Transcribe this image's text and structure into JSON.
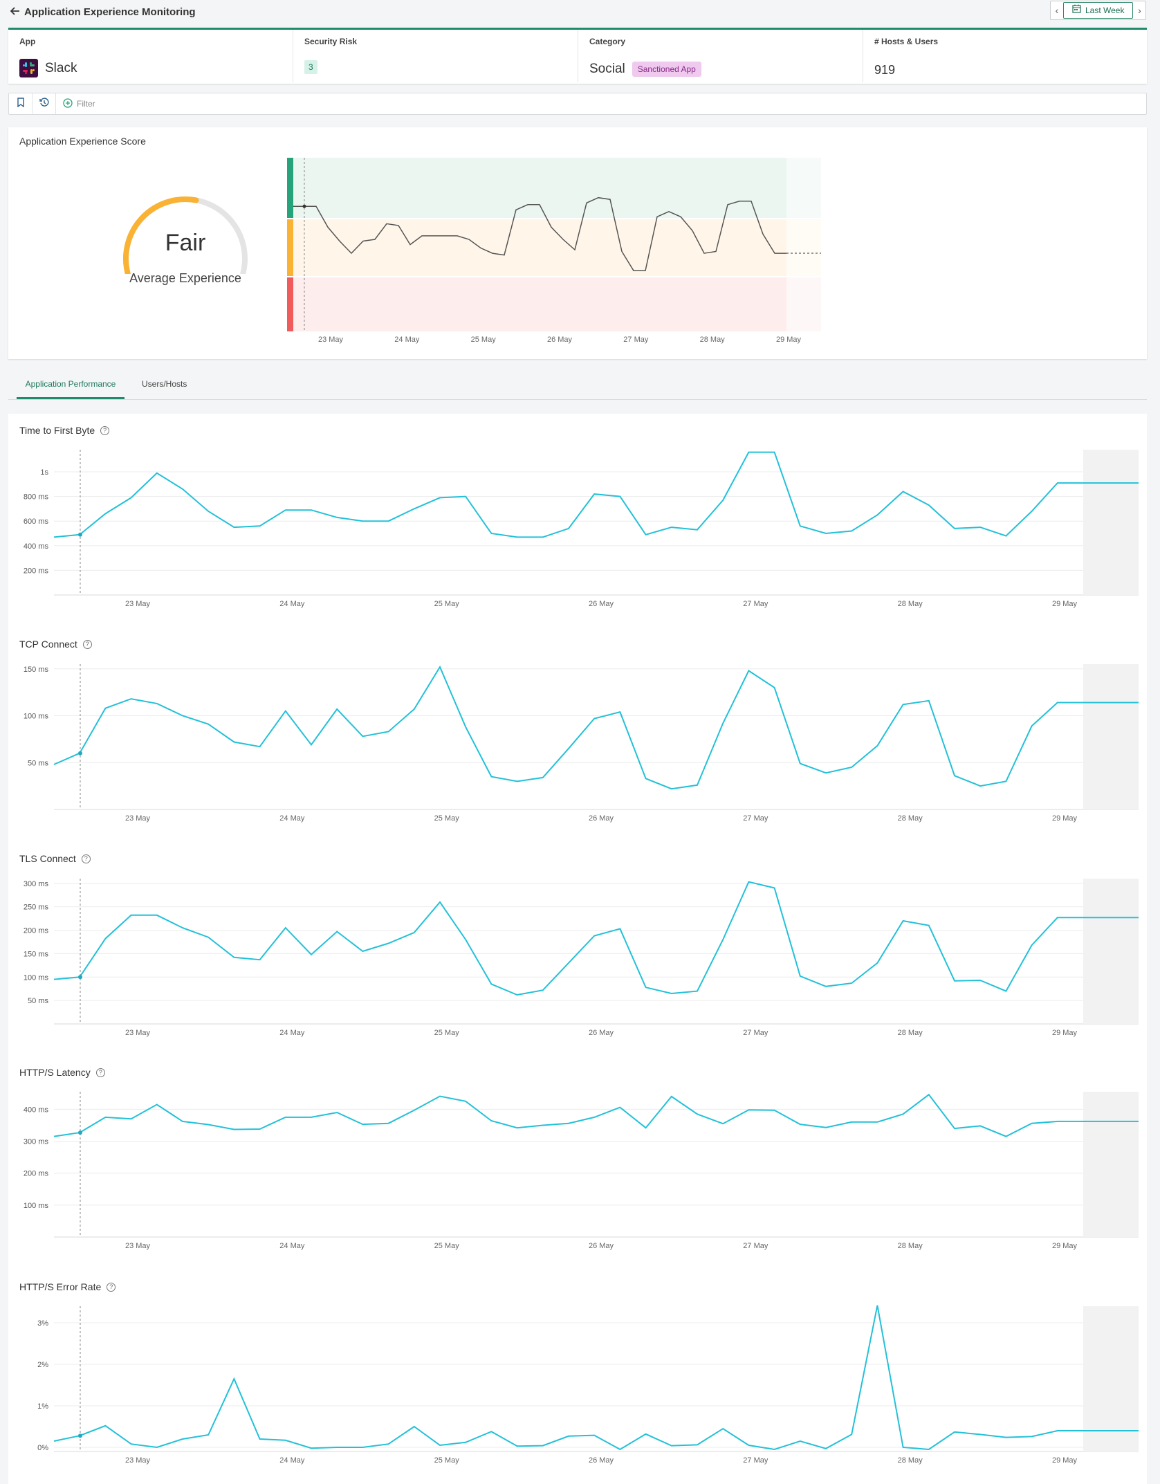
{
  "header": {
    "title": "Application Experience Monitoring",
    "time_range": "Last Week"
  },
  "icons": {
    "back": "back-arrow-icon",
    "calendar": "calendar-icon",
    "bookmark": "bookmark-icon",
    "history": "history-icon",
    "add_filter": "add-circle-icon",
    "help": "help-circle-icon"
  },
  "info": {
    "app_label": "App",
    "app_value": "Slack",
    "risk_label": "Security Risk",
    "risk_value": "3",
    "category_label": "Category",
    "category_value": "Social",
    "category_badge": "Sanctioned App",
    "hosts_label": "# Hosts & Users",
    "hosts_value": "919"
  },
  "filter": {
    "label": "Filter"
  },
  "score": {
    "title": "Application Experience Score",
    "rating": "Fair",
    "subtitle": "Average Experience",
    "gauge_fraction": 0.55,
    "colors": {
      "good": "#26a37a",
      "fair": "#f9b233",
      "poor": "#f05b5b"
    },
    "x_labels": [
      "23 May",
      "24 May",
      "25 May",
      "26 May",
      "27 May",
      "28 May",
      "29 May"
    ],
    "series": [
      0.72,
      0.72,
      0.6,
      0.52,
      0.45,
      0.52,
      0.53,
      0.62,
      0.61,
      0.5,
      0.55,
      0.55,
      0.55,
      0.55,
      0.53,
      0.48,
      0.45,
      0.44,
      0.7,
      0.73,
      0.73,
      0.6,
      0.53,
      0.47,
      0.74,
      0.77,
      0.76,
      0.46,
      0.35,
      0.35,
      0.66,
      0.69,
      0.66,
      0.58,
      0.45,
      0.46,
      0.73,
      0.75,
      0.75,
      0.56,
      0.45,
      0.45
    ]
  },
  "tabs": [
    {
      "label": "Application Performance"
    },
    {
      "label": "Users/Hosts"
    }
  ],
  "chart_data": [
    {
      "type": "line",
      "title": "Time to First Byte",
      "x_labels": [
        "23 May",
        "24 May",
        "25 May",
        "26 May",
        "27 May",
        "28 May",
        "29 May"
      ],
      "y_ticks": [
        {
          "v": 200,
          "label": "200 ms"
        },
        {
          "v": 400,
          "label": "400 ms"
        },
        {
          "v": 600,
          "label": "600 ms"
        },
        {
          "v": 800,
          "label": "800 ms"
        },
        {
          "v": 1000,
          "label": "1s"
        }
      ],
      "ylim": [
        0,
        1180
      ],
      "values": [
        470,
        490,
        660,
        790,
        990,
        860,
        680,
        550,
        560,
        690,
        690,
        630,
        600,
        600,
        700,
        790,
        800,
        500,
        470,
        470,
        540,
        820,
        800,
        490,
        550,
        530,
        770,
        1160,
        1160,
        560,
        500,
        520,
        650,
        840,
        730,
        540,
        550,
        480,
        680,
        910,
        910
      ]
    },
    {
      "type": "line",
      "title": "TCP Connect",
      "x_labels": [
        "23 May",
        "24 May",
        "25 May",
        "26 May",
        "27 May",
        "28 May",
        "29 May"
      ],
      "y_ticks": [
        {
          "v": 50,
          "label": "50 ms"
        },
        {
          "v": 100,
          "label": "100 ms"
        },
        {
          "v": 150,
          "label": "150 ms"
        }
      ],
      "ylim": [
        0,
        155
      ],
      "values": [
        48,
        60,
        108,
        118,
        113,
        100,
        91,
        72,
        67,
        105,
        69,
        107,
        78,
        83,
        107,
        152,
        88,
        35,
        30,
        34,
        65,
        97,
        104,
        33,
        22,
        26,
        92,
        148,
        130,
        49,
        39,
        45,
        68,
        112,
        116,
        36,
        25,
        30,
        89,
        114,
        114
      ]
    },
    {
      "type": "line",
      "title": "TLS Connect",
      "x_labels": [
        "23 May",
        "24 May",
        "25 May",
        "26 May",
        "27 May",
        "28 May",
        "29 May"
      ],
      "y_ticks": [
        {
          "v": 50,
          "label": "50 ms"
        },
        {
          "v": 100,
          "label": "100 ms"
        },
        {
          "v": 150,
          "label": "150 ms"
        },
        {
          "v": 200,
          "label": "200 ms"
        },
        {
          "v": 250,
          "label": "250 ms"
        },
        {
          "v": 300,
          "label": "300 ms"
        }
      ],
      "ylim": [
        0,
        310
      ],
      "values": [
        95,
        100,
        182,
        232,
        232,
        205,
        185,
        142,
        137,
        205,
        148,
        197,
        155,
        172,
        195,
        260,
        180,
        85,
        62,
        72,
        130,
        188,
        203,
        78,
        65,
        70,
        180,
        303,
        290,
        102,
        80,
        87,
        130,
        220,
        210,
        92,
        93,
        70,
        168,
        227,
        227
      ]
    },
    {
      "type": "line",
      "title": "HTTP/S Latency",
      "x_labels": [
        "23 May",
        "24 May",
        "25 May",
        "26 May",
        "27 May",
        "28 May",
        "29 May"
      ],
      "y_ticks": [
        {
          "v": 100,
          "label": "100 ms"
        },
        {
          "v": 200,
          "label": "200 ms"
        },
        {
          "v": 300,
          "label": "300 ms"
        },
        {
          "v": 400,
          "label": "400 ms"
        }
      ],
      "ylim": [
        0,
        455
      ],
      "values": [
        315,
        327,
        375,
        370,
        415,
        362,
        352,
        337,
        338,
        375,
        375,
        390,
        353,
        356,
        397,
        441,
        425,
        364,
        342,
        350,
        356,
        375,
        406,
        342,
        440,
        385,
        355,
        398,
        397,
        353,
        343,
        360,
        360,
        385,
        446,
        340,
        348,
        315,
        356,
        362,
        362
      ]
    },
    {
      "type": "line",
      "title": "HTTP/S Error Rate",
      "x_labels": [
        "23 May",
        "24 May",
        "25 May",
        "26 May",
        "27 May",
        "28 May",
        "29 May"
      ],
      "y_ticks": [
        {
          "v": 0,
          "label": "0%"
        },
        {
          "v": 1,
          "label": "1%"
        },
        {
          "v": 2,
          "label": "2%"
        },
        {
          "v": 3,
          "label": "3%"
        }
      ],
      "ylim": [
        -0.1,
        3.4
      ],
      "values": [
        0.15,
        0.28,
        0.52,
        0.08,
        0.0,
        0.2,
        0.3,
        1.65,
        0.2,
        0.17,
        -0.02,
        0.0,
        0.0,
        0.08,
        0.5,
        0.05,
        0.12,
        0.38,
        0.03,
        0.04,
        0.27,
        0.29,
        -0.05,
        0.32,
        0.04,
        0.06,
        0.45,
        0.05,
        -0.05,
        0.15,
        -0.03,
        0.31,
        3.42,
        0.0,
        -0.05,
        0.37,
        0.31,
        0.24,
        0.26,
        0.4,
        0.4
      ]
    }
  ]
}
